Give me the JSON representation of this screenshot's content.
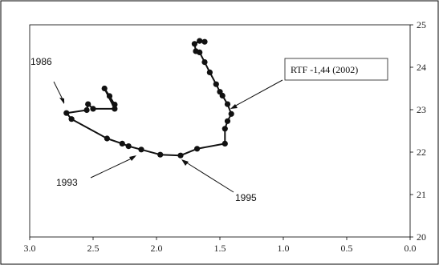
{
  "chart_data": {
    "type": "scatter",
    "title": "",
    "xlabel": "",
    "ylabel": "",
    "xlim": [
      3.0,
      0.0
    ],
    "ylim": [
      20,
      25
    ],
    "x_reversed": true,
    "y_axis_side": "right",
    "grid": false,
    "x_ticks": [
      "3.0",
      "2.5",
      "2.0",
      "1.5",
      "1.0",
      "0.5",
      "0.0"
    ],
    "y_ticks": [
      "20",
      "21",
      "22",
      "23",
      "24",
      "25"
    ],
    "series": [
      {
        "points": [
          [
            2.33,
            23.12
          ],
          [
            2.37,
            23.32
          ],
          [
            2.41,
            23.5
          ],
          [
            2.33,
            23.02
          ],
          [
            2.5,
            23.02
          ],
          [
            2.54,
            23.13
          ],
          [
            2.55,
            22.99
          ],
          [
            2.71,
            22.92
          ],
          [
            2.67,
            22.78
          ],
          [
            2.39,
            22.32
          ],
          [
            2.27,
            22.2
          ],
          [
            2.22,
            22.14
          ],
          [
            2.12,
            22.06
          ],
          [
            1.97,
            21.94
          ],
          [
            1.81,
            21.92
          ],
          [
            1.68,
            22.08
          ],
          [
            1.46,
            22.2
          ],
          [
            1.46,
            22.55
          ],
          [
            1.44,
            22.73
          ],
          [
            1.41,
            22.9
          ],
          [
            1.44,
            23.13
          ],
          [
            1.48,
            23.33
          ],
          [
            1.5,
            23.42
          ],
          [
            1.53,
            23.6
          ],
          [
            1.58,
            23.88
          ],
          [
            1.62,
            24.12
          ],
          [
            1.66,
            24.35
          ],
          [
            1.69,
            24.38
          ],
          [
            1.7,
            24.55
          ],
          [
            1.66,
            24.62
          ],
          [
            1.62,
            24.6
          ]
        ]
      }
    ],
    "annotations": [
      {
        "text": "1986",
        "boxed": false
      },
      {
        "text": "1993",
        "boxed": false
      },
      {
        "text": "1995",
        "boxed": false
      },
      {
        "text": "RTF -1,44 (2002)",
        "boxed": true
      }
    ]
  }
}
